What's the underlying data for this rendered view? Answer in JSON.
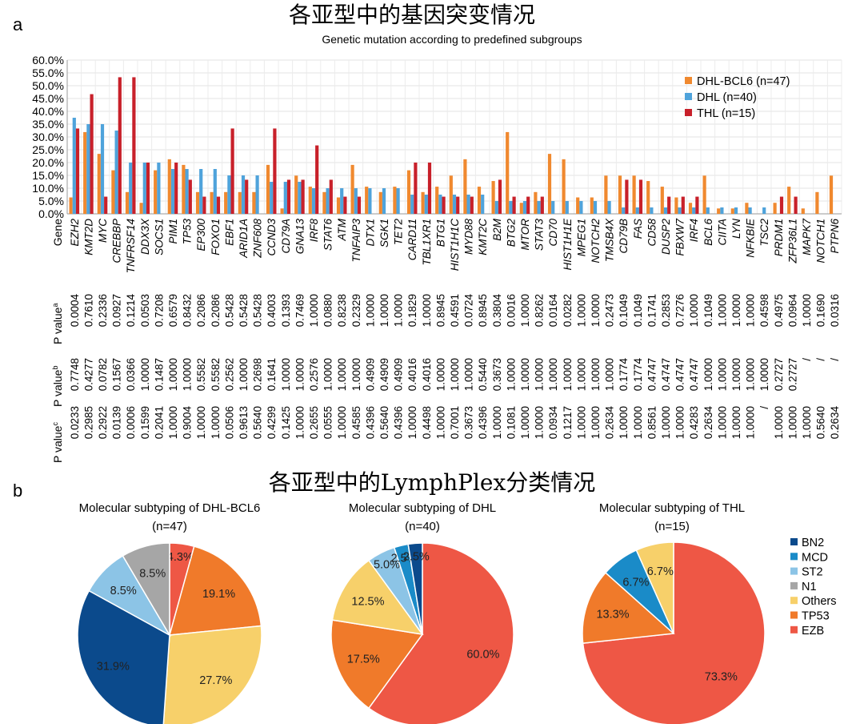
{
  "figure": {
    "panel_a_letter": "a",
    "panel_b_letter": "b",
    "title_a": "各亚型中的基因突变情况",
    "title_b": "各亚型中的LymphPlex分类情况"
  },
  "chart_data": [
    {
      "type": "bar",
      "title": "Genetic mutation according to predefined subgroups",
      "gene_header": "Gene",
      "ylim": [
        0,
        60
      ],
      "yticks": [
        "0.0%",
        "5.0%",
        "10.0%",
        "15.0%",
        "20.0%",
        "25.0%",
        "30.0%",
        "35.0%",
        "40.0%",
        "45.0%",
        "50.0%",
        "55.0%",
        "60.0%"
      ],
      "grid": true,
      "legend_position": "top-right",
      "categories": [
        "EZH2",
        "KMT2D",
        "MYC",
        "CREBBP",
        "TNFRSF14",
        "DDX3X",
        "SOCS1",
        "PIM1",
        "TP53",
        "EP300",
        "FOXO1",
        "EBF1",
        "ARID1A",
        "ZNF608",
        "CCND3",
        "CD79A",
        "GNA13",
        "IRF8",
        "STAT6",
        "ATM",
        "TNFAIP3",
        "DTX1",
        "SGK1",
        "TET2",
        "CARD11",
        "TBL1XR1",
        "BTG1",
        "HIST1H1C",
        "MYD88",
        "KMT2C",
        "B2M",
        "BTG2",
        "MTOR",
        "STAT3",
        "CD70",
        "HIST1H1E",
        "MPEG1",
        "NOTCH2",
        "TMSB4X",
        "CD79B",
        "FAS",
        "CD58",
        "DUSP2",
        "FBXW7",
        "IRF4",
        "BCL6",
        "CIITA",
        "LYN",
        "NFKBIE",
        "TSC2",
        "PRDM1",
        "ZFP36L1",
        "MAPK7",
        "NOTCH1",
        "PTPN6"
      ],
      "series": [
        {
          "name": "DHL-BCL6 (n=47)",
          "color": "#F0892F",
          "values": [
            6.4,
            31.9,
            23.4,
            17.0,
            8.5,
            4.3,
            17.0,
            21.3,
            19.1,
            8.5,
            8.5,
            8.5,
            8.5,
            8.5,
            19.1,
            2.1,
            14.9,
            10.6,
            8.5,
            6.4,
            19.1,
            10.6,
            8.5,
            10.6,
            17.0,
            8.5,
            10.6,
            14.9,
            21.3,
            10.6,
            12.8,
            31.9,
            4.3,
            8.5,
            23.4,
            21.3,
            6.4,
            6.4,
            14.9,
            14.9,
            14.9,
            12.8,
            10.6,
            6.4,
            4.3,
            14.9,
            2.1,
            2.1,
            4.3,
            0,
            4.3,
            10.6,
            2.1,
            8.5,
            14.9
          ]
        },
        {
          "name": "DHL (n=40)",
          "color": "#4FA3DB",
          "values": [
            37.5,
            35.0,
            35.0,
            32.5,
            20.0,
            20.0,
            20.0,
            17.5,
            17.5,
            17.5,
            17.5,
            15.0,
            15.0,
            15.0,
            12.5,
            12.5,
            12.5,
            10.0,
            10.0,
            10.0,
            10.0,
            10.0,
            10.0,
            10.0,
            7.5,
            7.5,
            7.5,
            7.5,
            7.5,
            7.5,
            5.0,
            5.0,
            5.0,
            5.0,
            5.0,
            5.0,
            5.0,
            5.0,
            5.0,
            2.5,
            2.5,
            2.5,
            2.5,
            2.5,
            2.5,
            2.5,
            2.5,
            2.5,
            2.5,
            2.5,
            0,
            0,
            0,
            0,
            0
          ]
        },
        {
          "name": "THL (n=15)",
          "color": "#C8202A",
          "values": [
            33.3,
            46.7,
            6.7,
            53.3,
            53.3,
            20.0,
            0,
            20.0,
            13.3,
            6.7,
            6.7,
            33.3,
            13.3,
            0,
            33.3,
            13.3,
            13.3,
            26.7,
            13.3,
            6.7,
            6.7,
            0,
            0,
            0,
            20.0,
            20.0,
            6.7,
            6.7,
            6.7,
            0,
            13.3,
            6.7,
            6.7,
            6.7,
            0,
            0,
            0,
            0,
            0,
            13.3,
            13.3,
            0,
            6.7,
            6.7,
            6.7,
            0,
            0,
            0,
            0,
            0,
            6.7,
            6.7,
            0,
            0,
            0
          ]
        }
      ],
      "p_labels": [
        "P value",
        "a",
        "P value",
        "b",
        "P value",
        "c"
      ],
      "p_values": [
        [
          "0.0004",
          "0.7748",
          "0.0233"
        ],
        [
          "0.7610",
          "0.4277",
          "0.2985"
        ],
        [
          "0.2336",
          "0.0782",
          "0.2922"
        ],
        [
          "0.0927",
          "0.1567",
          "0.0139"
        ],
        [
          "0.1214",
          "0.0366",
          "0.0006"
        ],
        [
          "0.0503",
          "1.0000",
          "0.1599"
        ],
        [
          "0.7208",
          "0.1487",
          "0.2041"
        ],
        [
          "0.6579",
          "1.0000",
          "1.0000"
        ],
        [
          "0.8432",
          "1.0000",
          "0.9004"
        ],
        [
          "0.2086",
          "0.5582",
          "1.0000"
        ],
        [
          "0.2086",
          "0.5582",
          "1.0000"
        ],
        [
          "0.5428",
          "0.2562",
          "0.0506"
        ],
        [
          "0.5428",
          "1.0000",
          "0.9613"
        ],
        [
          "0.5428",
          "0.2698",
          "0.5640"
        ],
        [
          "0.4003",
          "0.1641",
          "0.4299"
        ],
        [
          "0.1393",
          "1.0000",
          "0.1425"
        ],
        [
          "0.7469",
          "1.0000",
          "1.0000"
        ],
        [
          "1.0000",
          "0.2576",
          "0.2655"
        ],
        [
          "0.0880",
          "1.0000",
          "0.0555"
        ],
        [
          "0.8238",
          "1.0000",
          "1.0000"
        ],
        [
          "0.2329",
          "1.0000",
          "0.4585"
        ],
        [
          "1.0000",
          "0.4909",
          "0.4396"
        ],
        [
          "1.0000",
          "0.4909",
          "0.5640"
        ],
        [
          "1.0000",
          "0.4909",
          "0.4396"
        ],
        [
          "0.1829",
          "0.4016",
          "1.0000"
        ],
        [
          "1.0000",
          "0.4016",
          "0.4498"
        ],
        [
          "0.8945",
          "1.0000",
          "1.0000"
        ],
        [
          "0.4591",
          "1.0000",
          "0.7001"
        ],
        [
          "0.0724",
          "1.0000",
          "0.3673"
        ],
        [
          "0.8945",
          "0.5440",
          "0.4396"
        ],
        [
          "0.3804",
          "0.3673",
          "1.0000"
        ],
        [
          "0.0016",
          "1.0000",
          "0.1081"
        ],
        [
          "1.0000",
          "1.0000",
          "1.0000"
        ],
        [
          "0.8262",
          "1.0000",
          "1.0000"
        ],
        [
          "0.0164",
          "1.0000",
          "0.0934"
        ],
        [
          "0.0282",
          "1.0000",
          "0.1217"
        ],
        [
          "1.0000",
          "1.0000",
          "1.0000"
        ],
        [
          "1.0000",
          "1.0000",
          "1.0000"
        ],
        [
          "0.2473",
          "1.0000",
          "0.2634"
        ],
        [
          "0.1049",
          "0.1774",
          "1.0000"
        ],
        [
          "0.1049",
          "0.1774",
          "1.0000"
        ],
        [
          "0.1741",
          "0.4747",
          "0.8561"
        ],
        [
          "0.2853",
          "0.4747",
          "1.0000"
        ],
        [
          "0.7276",
          "0.4747",
          "1.0000"
        ],
        [
          "1.0000",
          "0.4747",
          "0.4283"
        ],
        [
          "0.1049",
          "1.0000",
          "0.2634"
        ],
        [
          "1.0000",
          "1.0000",
          "1.0000"
        ],
        [
          "1.0000",
          "1.0000",
          "1.0000"
        ],
        [
          "1.0000",
          "1.0000",
          "1.0000"
        ],
        [
          "0.4598",
          "1.0000",
          "/"
        ],
        [
          "0.4975",
          "0.2727",
          "1.0000"
        ],
        [
          "0.0964",
          "0.2727",
          "1.0000"
        ],
        [
          "1.0000",
          "/",
          "1.0000"
        ],
        [
          "0.1690",
          "/",
          "0.5640"
        ],
        [
          "0.0316",
          "/",
          "0.2634"
        ]
      ]
    },
    {
      "type": "pie",
      "title": "Molecular subtyping of DHL-BCL6",
      "subtitle": "(n=47)",
      "slices": [
        {
          "label": "EZB",
          "value": 4.3,
          "text": "4.3%"
        },
        {
          "label": "TP53",
          "value": 19.1,
          "text": "19.1%"
        },
        {
          "label": "Others",
          "value": 27.7,
          "text": "27.7%"
        },
        {
          "label": "BN2",
          "value": 31.9,
          "text": "31.9%"
        },
        {
          "label": "ST2",
          "value": 8.5,
          "text": "8.5%"
        },
        {
          "label": "N1",
          "value": 8.5,
          "text": "8.5%"
        }
      ]
    },
    {
      "type": "pie",
      "title": "Molecular subtyping of DHL",
      "subtitle": "(n=40)",
      "slices": [
        {
          "label": "EZB",
          "value": 60.0,
          "text": "60.0%"
        },
        {
          "label": "TP53",
          "value": 17.5,
          "text": "17.5%"
        },
        {
          "label": "Others",
          "value": 12.5,
          "text": "12.5%"
        },
        {
          "label": "ST2",
          "value": 5.0,
          "text": "5.0%"
        },
        {
          "label": "MCD",
          "value": 2.5,
          "text": "2.5%"
        },
        {
          "label": "BN2",
          "value": 2.5,
          "text": "2.5%"
        }
      ]
    },
    {
      "type": "pie",
      "title": "Molecular subtyping of THL",
      "subtitle": "(n=15)",
      "slices": [
        {
          "label": "EZB",
          "value": 73.3,
          "text": "73.3%"
        },
        {
          "label": "TP53",
          "value": 13.3,
          "text": "13.3%"
        },
        {
          "label": "MCD",
          "value": 6.7,
          "text": "6.7%"
        },
        {
          "label": "Others",
          "value": 6.7,
          "text": "6.7%"
        }
      ]
    }
  ],
  "pie_legend": [
    {
      "label": "BN2",
      "color": "#0B4A8C"
    },
    {
      "label": "MCD",
      "color": "#1A8BC8"
    },
    {
      "label": "ST2",
      "color": "#8CC4E6"
    },
    {
      "label": "N1",
      "color": "#A6A6A6"
    },
    {
      "label": "Others",
      "color": "#F7D06A"
    },
    {
      "label": "TP53",
      "color": "#F07A2A"
    },
    {
      "label": "EZB",
      "color": "#EE5745"
    }
  ]
}
